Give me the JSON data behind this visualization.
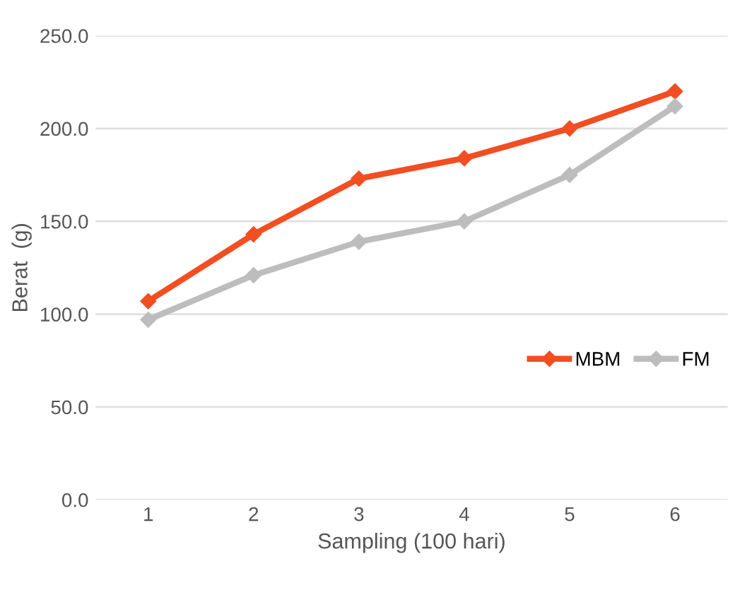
{
  "chart_data": {
    "type": "line",
    "xlabel": "Sampling (100 hari)",
    "ylabel": "Berat  (g)",
    "categories": [
      "1",
      "2",
      "3",
      "4",
      "5",
      "6"
    ],
    "series": [
      {
        "name": "MBM",
        "color": "#f24e22",
        "values": [
          107,
          143,
          173,
          184,
          200,
          220
        ]
      },
      {
        "name": "FM",
        "color": "#bdbdbd",
        "values": [
          97,
          121,
          139,
          150,
          175,
          212
        ]
      }
    ],
    "ylim": [
      0,
      250
    ],
    "yticks": [
      {
        "value": 0,
        "label": "0.0"
      },
      {
        "value": 50,
        "label": "50.0"
      },
      {
        "value": 100,
        "label": "100.0"
      },
      {
        "value": 150,
        "label": "150.0"
      },
      {
        "value": 200,
        "label": "200.0"
      },
      {
        "value": 250,
        "label": "250.0"
      }
    ],
    "grid": "y",
    "legend": "right",
    "marker": "diamond",
    "line_style": "solid"
  }
}
